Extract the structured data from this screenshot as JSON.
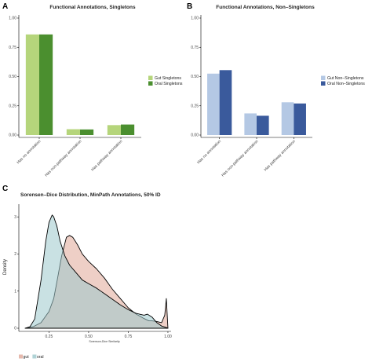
{
  "panels": {
    "a_letter": "A",
    "b_letter": "B",
    "c_letter": "C"
  },
  "chart_data": [
    {
      "type": "bar",
      "title": "Functional Annotations, Singletons",
      "categories": [
        "Has no annotation",
        "Has non-pathway annotation",
        "Has pathway annotation"
      ],
      "series": [
        {
          "name": "Gut Singletons",
          "values": [
            0.86,
            0.05,
            0.085
          ],
          "color": "#b5d57b"
        },
        {
          "name": "Oral Singletons",
          "values": [
            0.86,
            0.048,
            0.09
          ],
          "color": "#4b8f2f"
        }
      ],
      "ylim": [
        0,
        1.0
      ],
      "yticks": [
        "0.00",
        "0.25",
        "0.50",
        "0.75",
        "1.00"
      ],
      "xlabel": "",
      "ylabel": "",
      "legend": "right"
    },
    {
      "type": "bar",
      "title": "Functional Annotations, Non–Singletons",
      "categories": [
        "Has no annotation",
        "Has non-pathway annotation",
        "Has pathway annotation"
      ],
      "series": [
        {
          "name": "Gut Non–Singletons",
          "values": [
            0.525,
            0.185,
            0.28
          ],
          "color": "#b4c8e4"
        },
        {
          "name": "Oral Non–Singletons",
          "values": [
            0.555,
            0.165,
            0.27
          ],
          "color": "#3a5a9c"
        }
      ],
      "ylim": [
        0,
        1.0
      ],
      "yticks": [
        "0.00",
        "0.25",
        "0.50",
        "0.75",
        "1.00"
      ],
      "xlabel": "",
      "ylabel": "",
      "legend": "right"
    },
    {
      "type": "area",
      "title": "Sorensen–Dice Distribution, MinPath Annotations, 50% ID",
      "xlabel": "Sorenson-Dice Similarity",
      "ylabel": "Density",
      "xlim": [
        0.06,
        1.02
      ],
      "ylim": [
        0,
        3.3
      ],
      "xticks": [
        "0.25",
        "0.50",
        "0.75",
        "1.00"
      ],
      "yticks": [
        "0",
        "1",
        "2",
        "3"
      ],
      "legend": "bottom-left",
      "series": [
        {
          "name": "gut",
          "color": "#e0a898",
          "x": [
            0.1,
            0.15,
            0.2,
            0.25,
            0.28,
            0.3,
            0.33,
            0.36,
            0.38,
            0.4,
            0.43,
            0.46,
            0.5,
            0.55,
            0.6,
            0.65,
            0.7,
            0.75,
            0.8,
            0.85,
            0.88,
            0.9,
            0.93,
            0.96,
            0.98,
            0.99,
            1.0
          ],
          "y": [
            0.0,
            0.04,
            0.15,
            0.45,
            0.8,
            1.25,
            1.95,
            2.45,
            2.5,
            2.45,
            2.25,
            2.0,
            1.8,
            1.6,
            1.35,
            1.05,
            0.8,
            0.55,
            0.38,
            0.26,
            0.2,
            0.2,
            0.18,
            0.15,
            0.35,
            0.8,
            0.0
          ]
        },
        {
          "name": "oral",
          "color": "#9cc8cc",
          "x": [
            0.1,
            0.13,
            0.16,
            0.2,
            0.23,
            0.25,
            0.27,
            0.28,
            0.3,
            0.32,
            0.35,
            0.38,
            0.42,
            0.46,
            0.5,
            0.55,
            0.6,
            0.65,
            0.7,
            0.75,
            0.8,
            0.85,
            0.87,
            0.9,
            0.93,
            0.96,
            0.99,
            1.0
          ],
          "y": [
            0.0,
            0.04,
            0.25,
            1.3,
            2.35,
            2.85,
            3.05,
            3.0,
            2.75,
            2.35,
            1.95,
            1.7,
            1.5,
            1.3,
            1.2,
            1.08,
            0.93,
            0.78,
            0.63,
            0.5,
            0.4,
            0.35,
            0.38,
            0.3,
            0.15,
            0.06,
            0.02,
            0.0
          ]
        }
      ]
    }
  ]
}
